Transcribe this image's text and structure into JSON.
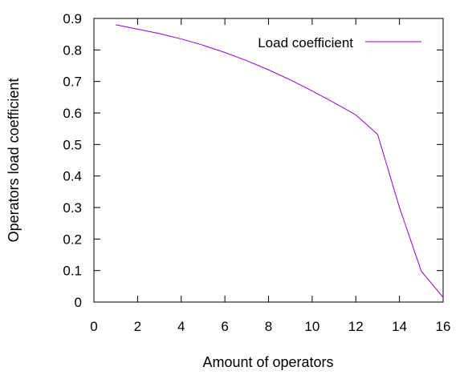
{
  "chart_data": {
    "type": "line",
    "title": "",
    "xlabel": "Amount of operators",
    "ylabel": "Operators load coefficient",
    "xlim": [
      0,
      16
    ],
    "ylim": [
      0,
      0.9
    ],
    "xticks": [
      0,
      2,
      4,
      6,
      8,
      10,
      12,
      14,
      16
    ],
    "yticks": [
      0,
      0.1,
      0.2,
      0.3,
      0.4,
      0.5,
      0.6,
      0.7,
      0.8,
      0.9
    ],
    "xtick_labels": [
      "0",
      "2",
      "4",
      "6",
      "8",
      "10",
      "12",
      "14",
      "16"
    ],
    "ytick_labels": [
      "0",
      "0.1",
      "0.2",
      "0.3",
      "0.4",
      "0.5",
      "0.6",
      "0.7",
      "0.8",
      "0.9"
    ],
    "grid": false,
    "legend": "top-right",
    "series": [
      {
        "name": "Load coefficient",
        "color": "#9400d3",
        "x": [
          1,
          2,
          3,
          4,
          5,
          6,
          7,
          8,
          9,
          10,
          11,
          12,
          13,
          14,
          15,
          16
        ],
        "y": [
          0.88,
          0.866,
          0.852,
          0.835,
          0.815,
          0.792,
          0.766,
          0.737,
          0.705,
          0.67,
          0.633,
          0.594,
          0.532,
          0.3,
          0.098,
          0.015
        ]
      }
    ]
  }
}
